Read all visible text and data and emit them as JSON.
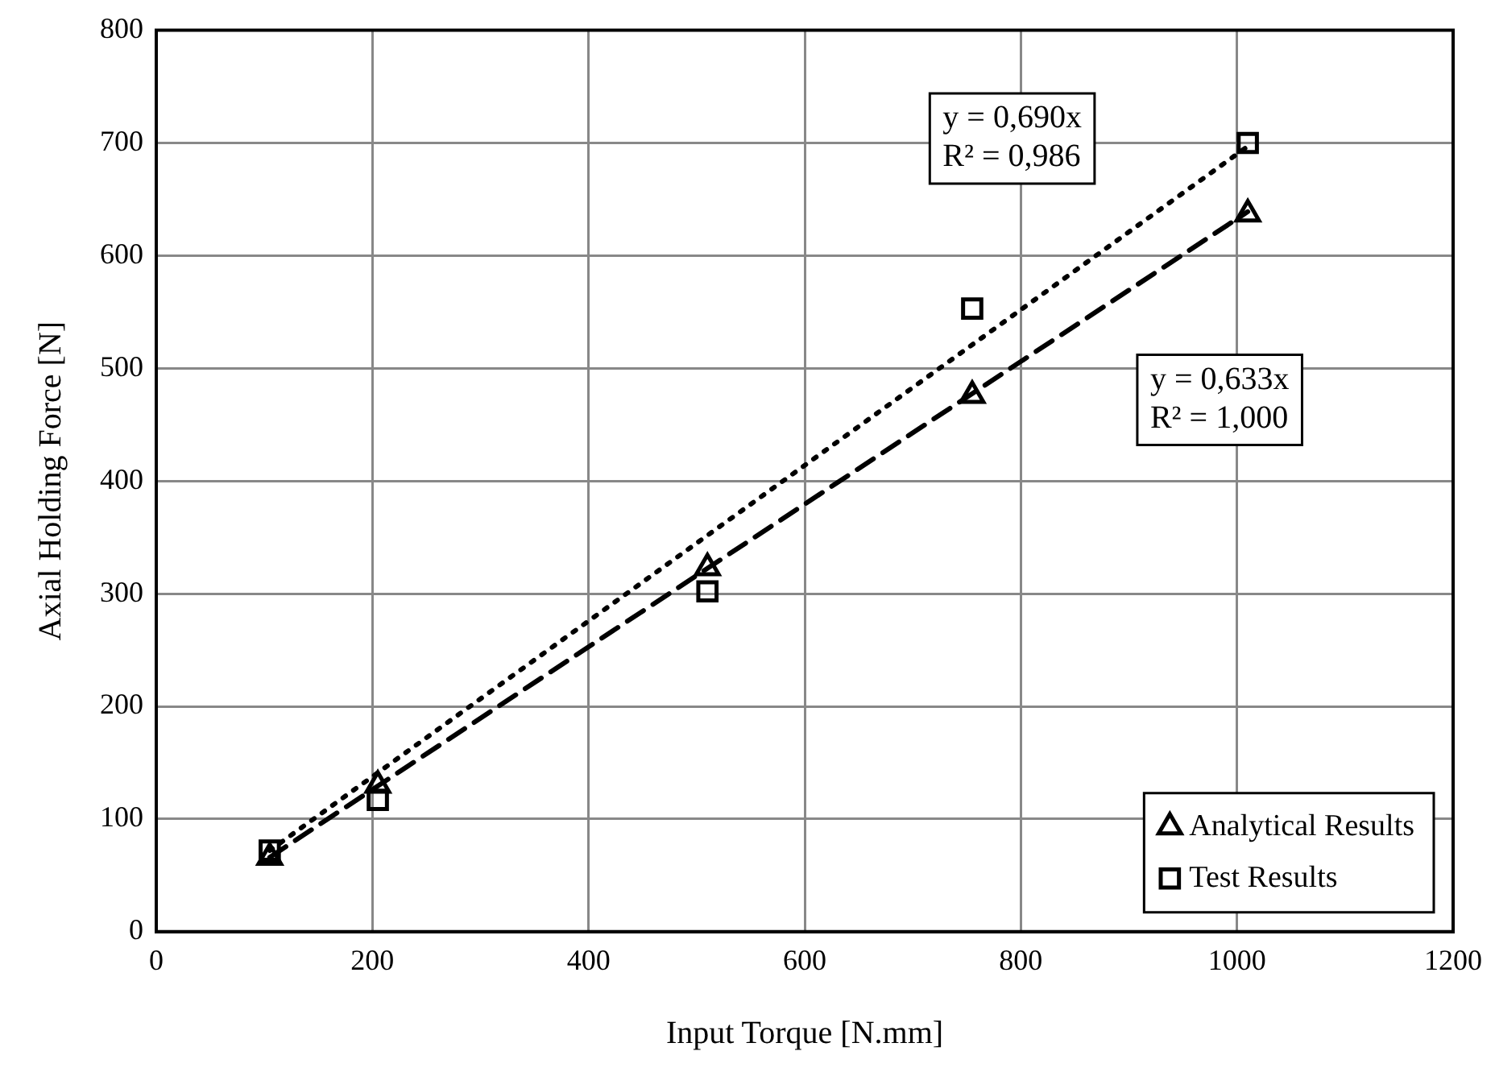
{
  "chart_data": {
    "type": "scatter",
    "xlabel": "Input Torque [N.mm]",
    "ylabel": "Axial Holding Force [N]",
    "xlim": [
      0,
      1200
    ],
    "xticks": [
      0,
      200,
      400,
      600,
      800,
      1000,
      1200
    ],
    "ylim": [
      0,
      800
    ],
    "yticks": [
      0,
      100,
      200,
      300,
      400,
      500,
      600,
      700,
      800
    ],
    "grid": true,
    "legend": "bottom right",
    "series": [
      {
        "name": "Analytical Results",
        "type": "scatter",
        "marker": "triangle",
        "color": "#000000",
        "x": [
          105,
          205,
          510,
          755,
          1010
        ],
        "values": [
          66,
          130,
          323,
          476,
          637
        ]
      },
      {
        "name": "Test Results",
        "type": "scatter",
        "marker": "square",
        "color": "#000000",
        "x": [
          105,
          205,
          510,
          755,
          1010
        ],
        "values": [
          72,
          117,
          302,
          553,
          700
        ]
      },
      {
        "type": "line",
        "marker": "none",
        "line_style": "dashed",
        "color": "#000000",
        "x": [
          105,
          1010
        ],
        "values": [
          66,
          639
        ]
      },
      {
        "type": "line",
        "marker": "none",
        "line_style": "dotted",
        "color": "#000000",
        "x": [
          105,
          1010
        ],
        "values": [
          72,
          697
        ]
      }
    ],
    "annotations": [
      "y = 0,690x\nR² = 0,986",
      "y = 0,633x\nR² = 1,000"
    ]
  }
}
